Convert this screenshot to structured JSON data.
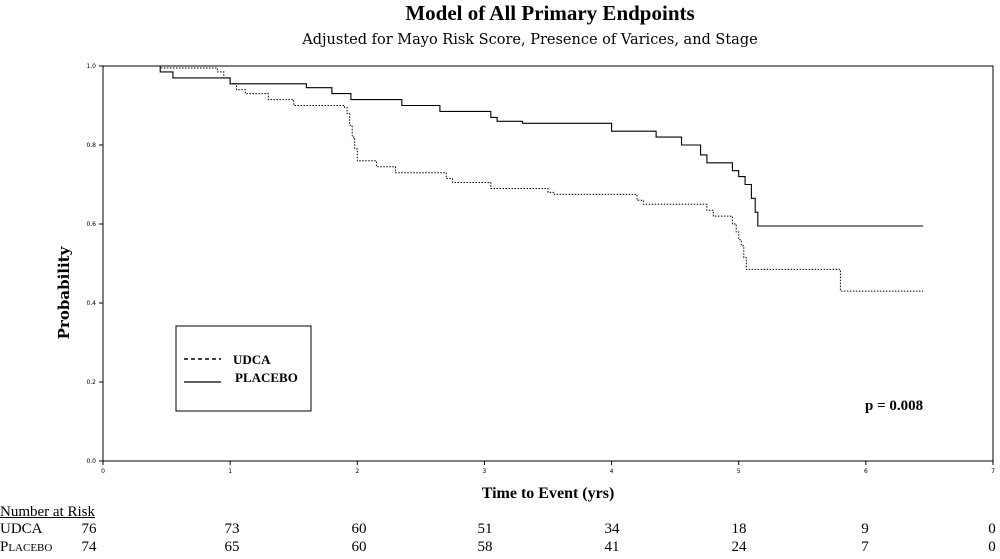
{
  "chart_data": {
    "type": "line",
    "title": "Model of All Primary Endpoints",
    "subtitle": "Adjusted for Mayo Risk Score, Presence of Varices, and Stage",
    "xlabel": "Time to Event (yrs)",
    "ylabel": "Probability",
    "xlim": [
      0,
      7
    ],
    "ylim": [
      0,
      1.0
    ],
    "x_ticks": [
      "0",
      "1",
      "2",
      "3",
      "4",
      "5",
      "6",
      "7"
    ],
    "y_ticks": [
      "0.0",
      "0.2",
      "0.4",
      "0.6",
      "0.8",
      "1.0"
    ],
    "grid": false,
    "legend_position": "bottom-left",
    "annotation": "p = 0.008",
    "series": [
      {
        "name": "UDCA",
        "style": "dotted",
        "points": [
          [
            0,
            1.0
          ],
          [
            0.45,
            1.0
          ],
          [
            0.45,
            0.995
          ],
          [
            0.9,
            0.995
          ],
          [
            0.9,
            0.985
          ],
          [
            0.95,
            0.985
          ],
          [
            0.95,
            0.97
          ],
          [
            1.0,
            0.97
          ],
          [
            1.0,
            0.955
          ],
          [
            1.05,
            0.955
          ],
          [
            1.05,
            0.94
          ],
          [
            1.12,
            0.94
          ],
          [
            1.12,
            0.93
          ],
          [
            1.3,
            0.93
          ],
          [
            1.3,
            0.915
          ],
          [
            1.5,
            0.915
          ],
          [
            1.5,
            0.9
          ],
          [
            1.9,
            0.9
          ],
          [
            1.9,
            0.895
          ],
          [
            1.92,
            0.895
          ],
          [
            1.92,
            0.88
          ],
          [
            1.94,
            0.88
          ],
          [
            1.94,
            0.85
          ],
          [
            1.96,
            0.85
          ],
          [
            1.96,
            0.82
          ],
          [
            1.98,
            0.82
          ],
          [
            1.98,
            0.79
          ],
          [
            2.0,
            0.79
          ],
          [
            2.0,
            0.76
          ],
          [
            2.15,
            0.76
          ],
          [
            2.15,
            0.745
          ],
          [
            2.3,
            0.745
          ],
          [
            2.3,
            0.73
          ],
          [
            2.7,
            0.73
          ],
          [
            2.7,
            0.715
          ],
          [
            2.75,
            0.715
          ],
          [
            2.75,
            0.705
          ],
          [
            3.05,
            0.705
          ],
          [
            3.05,
            0.69
          ],
          [
            3.5,
            0.69
          ],
          [
            3.5,
            0.68
          ],
          [
            3.55,
            0.68
          ],
          [
            3.55,
            0.675
          ],
          [
            4.2,
            0.675
          ],
          [
            4.2,
            0.66
          ],
          [
            4.25,
            0.66
          ],
          [
            4.25,
            0.65
          ],
          [
            4.75,
            0.65
          ],
          [
            4.75,
            0.635
          ],
          [
            4.8,
            0.635
          ],
          [
            4.8,
            0.62
          ],
          [
            4.95,
            0.62
          ],
          [
            4.95,
            0.6
          ],
          [
            4.98,
            0.6
          ],
          [
            4.98,
            0.58
          ],
          [
            5.0,
            0.58
          ],
          [
            5.0,
            0.56
          ],
          [
            5.02,
            0.56
          ],
          [
            5.02,
            0.545
          ],
          [
            5.04,
            0.545
          ],
          [
            5.04,
            0.515
          ],
          [
            5.06,
            0.515
          ],
          [
            5.06,
            0.485
          ],
          [
            5.8,
            0.485
          ],
          [
            5.8,
            0.43
          ],
          [
            6.45,
            0.43
          ]
        ]
      },
      {
        "name": "PLACEBO",
        "style": "solid",
        "points": [
          [
            0,
            1.0
          ],
          [
            0.45,
            1.0
          ],
          [
            0.45,
            0.985
          ],
          [
            0.55,
            0.985
          ],
          [
            0.55,
            0.97
          ],
          [
            1.0,
            0.97
          ],
          [
            1.0,
            0.955
          ],
          [
            1.6,
            0.955
          ],
          [
            1.6,
            0.945
          ],
          [
            1.8,
            0.945
          ],
          [
            1.8,
            0.93
          ],
          [
            1.95,
            0.93
          ],
          [
            1.95,
            0.915
          ],
          [
            2.35,
            0.915
          ],
          [
            2.35,
            0.9
          ],
          [
            2.65,
            0.9
          ],
          [
            2.65,
            0.885
          ],
          [
            3.05,
            0.885
          ],
          [
            3.05,
            0.87
          ],
          [
            3.1,
            0.87
          ],
          [
            3.1,
            0.86
          ],
          [
            3.3,
            0.86
          ],
          [
            3.3,
            0.855
          ],
          [
            4.0,
            0.855
          ],
          [
            4.0,
            0.835
          ],
          [
            4.35,
            0.835
          ],
          [
            4.35,
            0.82
          ],
          [
            4.55,
            0.82
          ],
          [
            4.55,
            0.8
          ],
          [
            4.7,
            0.8
          ],
          [
            4.7,
            0.775
          ],
          [
            4.75,
            0.775
          ],
          [
            4.75,
            0.755
          ],
          [
            4.95,
            0.755
          ],
          [
            4.95,
            0.735
          ],
          [
            5.0,
            0.735
          ],
          [
            5.0,
            0.72
          ],
          [
            5.05,
            0.72
          ],
          [
            5.05,
            0.7
          ],
          [
            5.1,
            0.7
          ],
          [
            5.1,
            0.665
          ],
          [
            5.13,
            0.665
          ],
          [
            5.13,
            0.63
          ],
          [
            5.15,
            0.63
          ],
          [
            5.15,
            0.595
          ],
          [
            6.45,
            0.595
          ]
        ]
      }
    ],
    "risk_table": {
      "title": "Number at Risk",
      "times": [
        0,
        1,
        2,
        3,
        4,
        5,
        6,
        7
      ],
      "rows": [
        {
          "label": "UDCA",
          "small_caps": false,
          "values": [
            "76",
            "73",
            "60",
            "51",
            "34",
            "18",
            "9",
            "0"
          ]
        },
        {
          "label": "Placebo",
          "small_caps": true,
          "values": [
            "74",
            "65",
            "60",
            "58",
            "41",
            "24",
            "7",
            "0"
          ]
        }
      ]
    }
  }
}
